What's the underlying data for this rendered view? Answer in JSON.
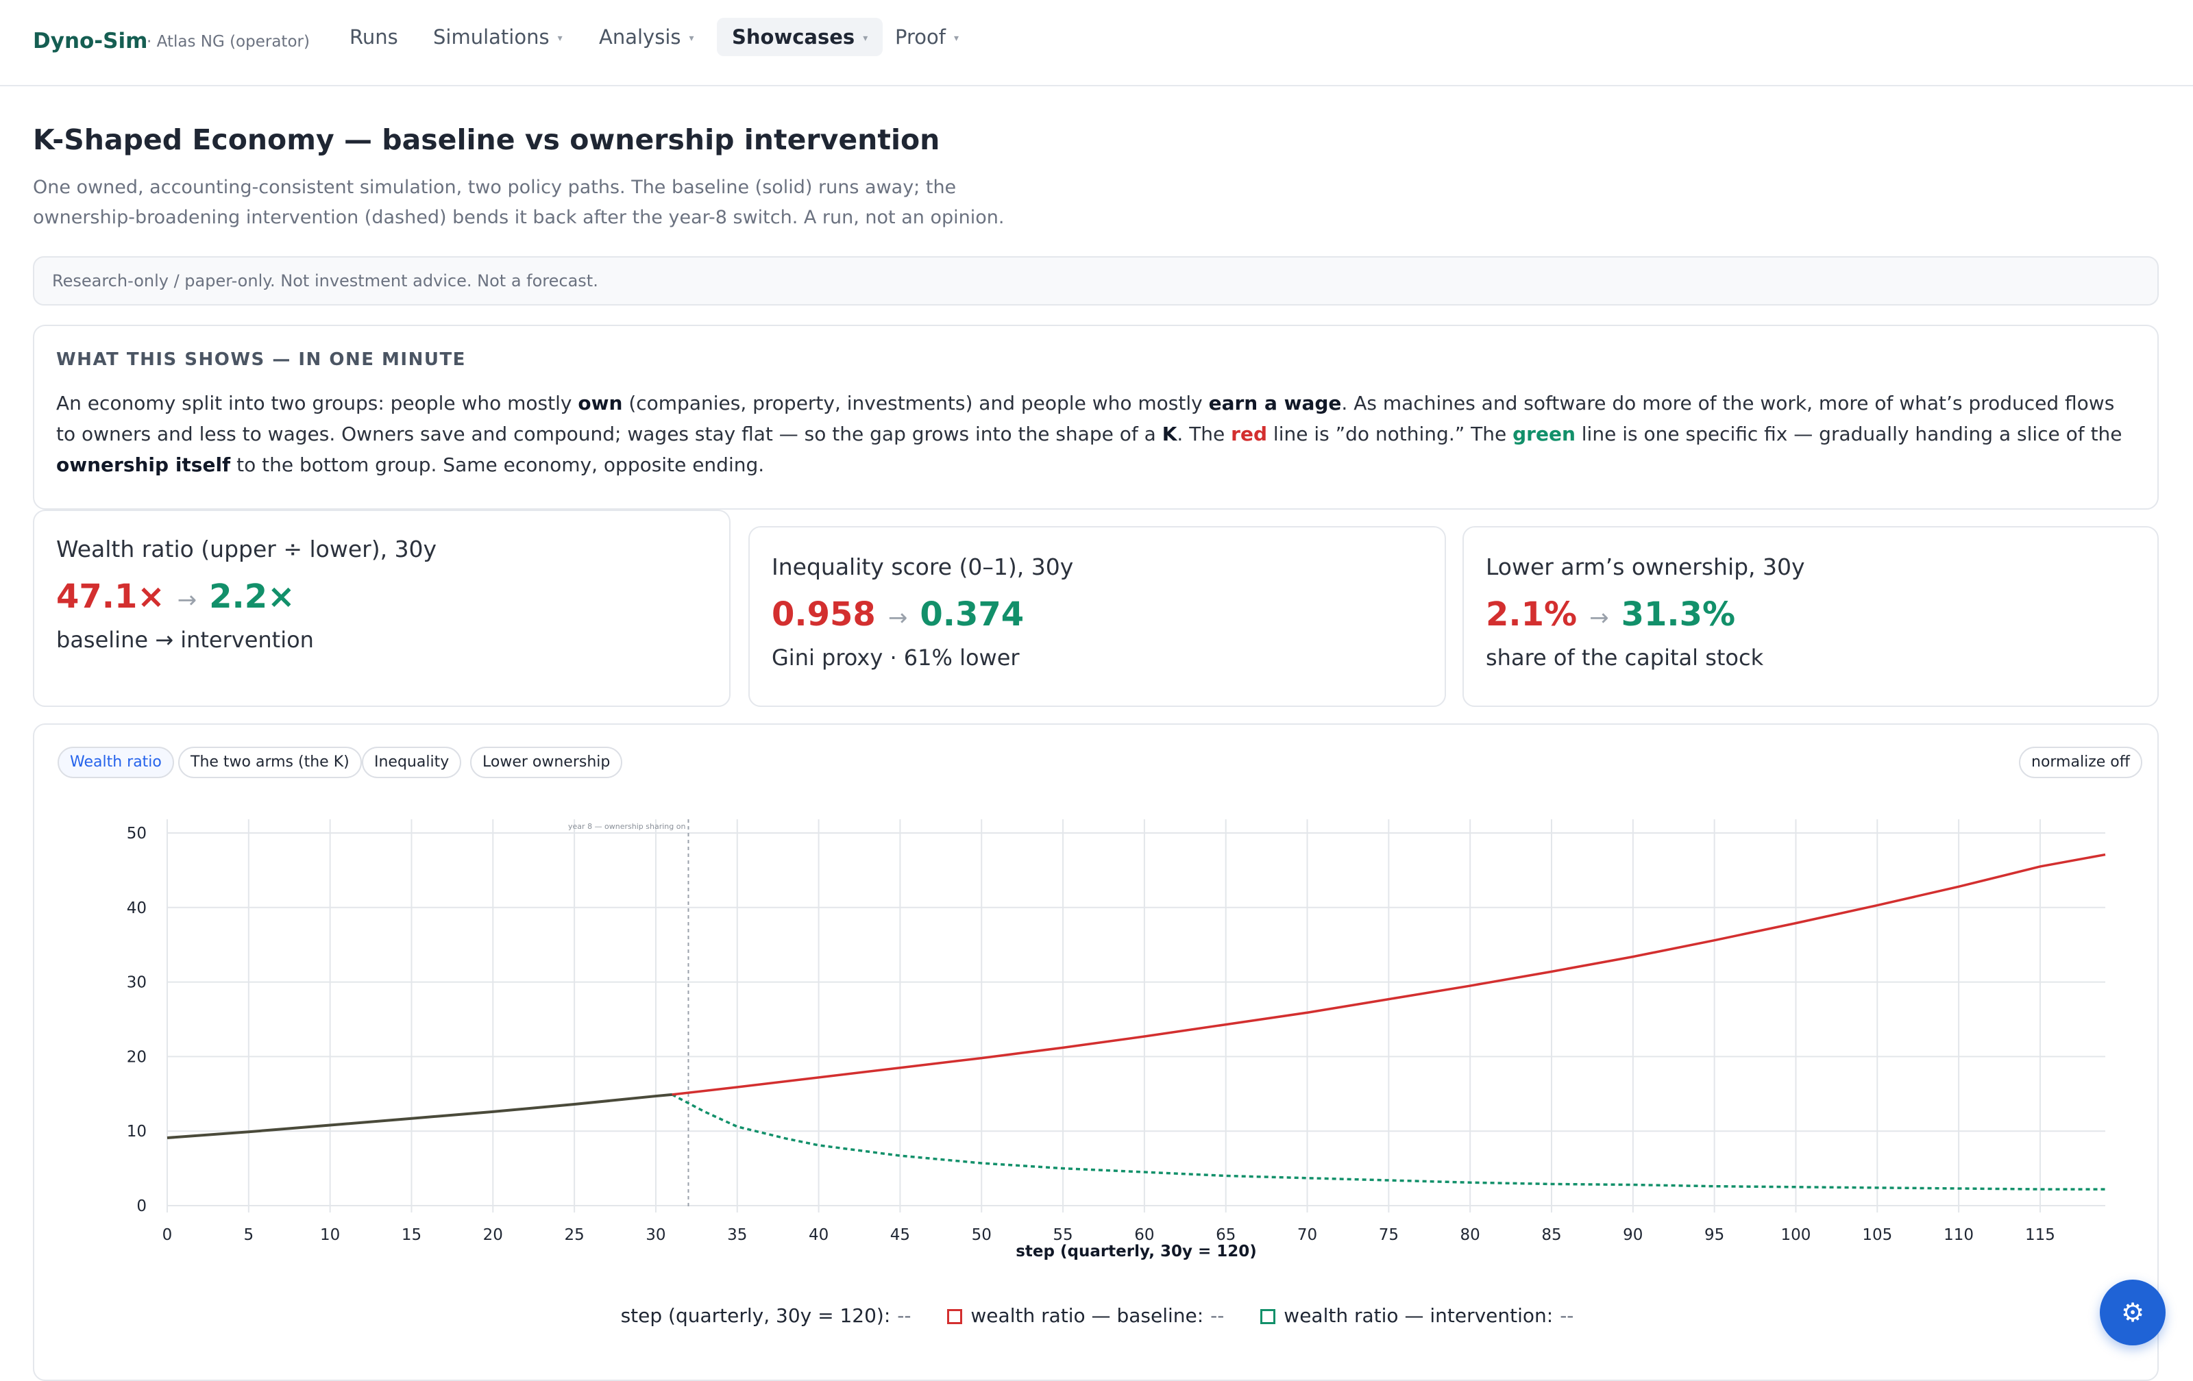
{
  "nav": {
    "brand": "Dyno-Sim",
    "brand_sub": "· Atlas NG (operator)",
    "items": [
      {
        "label": "Runs",
        "has_caret": false
      },
      {
        "label": "Simulations",
        "has_caret": true
      },
      {
        "label": "Analysis",
        "has_caret": true
      },
      {
        "label": "Showcases",
        "has_caret": true,
        "active": true
      },
      {
        "label": "Proof",
        "has_caret": true
      }
    ]
  },
  "page": {
    "title": "K-Shaped Economy — baseline vs ownership intervention",
    "subtitle": "One owned, accounting-consistent simulation, two policy paths. The baseline (solid) runs away; the ownership-broadening intervention (dashed) bends it back after the year-8 switch. A run, not an opinion.",
    "disclaimer": "Research-only / paper-only. Not investment advice. Not a forecast."
  },
  "explainer": {
    "heading": "WHAT THIS SHOWS — IN ONE MINUTE",
    "t1": "An economy split into two groups: people who mostly ",
    "b1": "own",
    "t2": " (companies, property, investments) and people who mostly ",
    "b2": "earn a wage",
    "t3": ". As machines and software do more of the work, more of what’s produced flows to owners and less to wages. Owners save and compound; wages stay flat — so the gap grows into the shape of a ",
    "b3": "K",
    "t4": ". The ",
    "red": "red",
    "t5": " line is ”do nothing.” The ",
    "green": "green",
    "t6": " line is one specific fix — gradually handing a slice of the ",
    "b4": "ownership itself",
    "t7": " to the bottom group. Same economy, opposite ending."
  },
  "stats": [
    {
      "label": "Wealth ratio (upper ÷ lower), 30y",
      "baseline": "47.1×",
      "arrow": "→",
      "intervention": "2.2×",
      "note": "baseline → intervention"
    },
    {
      "label": "Inequality score (0–1), 30y",
      "baseline": "0.958",
      "arrow": "→",
      "intervention": "0.374",
      "note": "Gini proxy · 61% lower"
    },
    {
      "label": "Lower arm’s ownership, 30y",
      "baseline": "2.1%",
      "arrow": "→",
      "intervention": "31.3%",
      "note": "share of the capital stock"
    }
  ],
  "chart_tabs": [
    "Wealth ratio",
    "The two arms (the K)",
    "Inequality",
    "Lower ownership"
  ],
  "active_tab": "Wealth ratio",
  "normalize_label": "normalize off",
  "legend": {
    "x_label": "step (quarterly, 30y = 120):",
    "baseline_label": "wealth ratio — baseline:",
    "intervention_label": "wealth ratio — intervention:",
    "empty_value": "--"
  },
  "colors": {
    "baseline": "#d32f2f",
    "intervention": "#12906a",
    "pre_switch": "#4a4a3a",
    "accent": "#2563eb"
  },
  "fab_icon": "gear-icon",
  "chart_data": {
    "type": "line",
    "xlabel": "step (quarterly, 30y = 120)",
    "ylabel": "",
    "xlim": [
      0,
      119
    ],
    "ylim": [
      0,
      50
    ],
    "x_ticks": [
      0,
      5,
      10,
      15,
      20,
      25,
      30,
      35,
      40,
      45,
      50,
      55,
      60,
      65,
      70,
      75,
      80,
      85,
      90,
      95,
      100,
      105,
      110,
      115
    ],
    "y_ticks": [
      0,
      10,
      20,
      30,
      40,
      50
    ],
    "grid": true,
    "annotation": {
      "x": 32,
      "text": "year 8 — ownership sharing on"
    },
    "series": [
      {
        "name": "wealth ratio — baseline",
        "style": "solid",
        "x": [
          0,
          5,
          10,
          15,
          20,
          25,
          30,
          31,
          35,
          40,
          45,
          50,
          55,
          60,
          65,
          70,
          75,
          80,
          85,
          90,
          95,
          100,
          105,
          110,
          115,
          119
        ],
        "y": [
          9.1,
          9.9,
          10.8,
          11.7,
          12.6,
          13.6,
          14.7,
          14.9,
          15.9,
          17.2,
          18.5,
          19.8,
          21.2,
          22.7,
          24.3,
          25.9,
          27.7,
          29.5,
          31.4,
          33.4,
          35.6,
          37.9,
          40.3,
          42.8,
          45.5,
          47.1
        ]
      },
      {
        "name": "wealth ratio — intervention",
        "style": "dashed",
        "x": [
          31,
          33,
          35,
          38,
          40,
          45,
          50,
          55,
          60,
          65,
          70,
          75,
          80,
          85,
          90,
          95,
          100,
          105,
          110,
          115,
          119
        ],
        "y": [
          14.9,
          12.6,
          10.6,
          9.0,
          8.1,
          6.7,
          5.7,
          5.0,
          4.5,
          4.0,
          3.7,
          3.4,
          3.1,
          2.9,
          2.8,
          2.6,
          2.5,
          2.4,
          2.3,
          2.2,
          2.2
        ]
      }
    ]
  }
}
